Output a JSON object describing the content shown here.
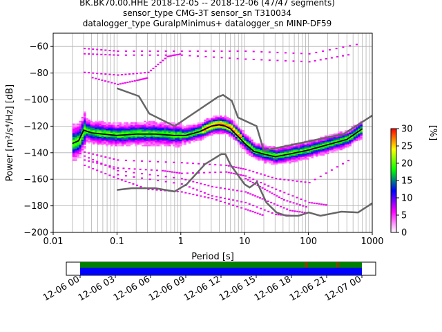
{
  "title": {
    "line1": "BK.BK70.00.HHE   2018-12-05 -- 2018-12-06  (47/47 segments)",
    "line2": "sensor_type CMG-3T sensor_sn T310034",
    "line3": "datalogger_type GuralpMinimus+ datalogger_sn MINP-DF59"
  },
  "chart_data": [
    {
      "type": "heatmap",
      "title": "",
      "xlabel": "Period [s]",
      "ylabel": "Power [m²/s⁴/Hz] [dB]",
      "xscale": "log",
      "xlim": [
        0.01,
        1000
      ],
      "ylim": [
        -200,
        -50
      ],
      "x_ticks": [
        "0.01",
        "0.1",
        "1",
        "10",
        "100",
        "1000"
      ],
      "y_ticks": [
        "−60",
        "−80",
        "−100",
        "−120",
        "−140",
        "−160",
        "−180",
        "−200"
      ],
      "grid": true,
      "colorbar": {
        "label": "[%]",
        "range": [
          0,
          30
        ],
        "ticks": [
          "0",
          "5",
          "10",
          "15",
          "20",
          "25",
          "30"
        ],
        "colormap": [
          "#ffffff",
          "#ff00ff",
          "#0000ff",
          "#00ff00",
          "#ffff00",
          "#ff0000"
        ]
      },
      "series": [
        {
          "role": "mean",
          "color": "#000000",
          "x": [
            0.02,
            0.025,
            0.03,
            0.04,
            0.06,
            0.1,
            0.2,
            0.4,
            0.8,
            1.2,
            2,
            3,
            4,
            5,
            6,
            8,
            10,
            14,
            20,
            30,
            50,
            100,
            200,
            400,
            700
          ],
          "y": [
            -133,
            -131,
            -123,
            -125,
            -126,
            -127,
            -126,
            -126,
            -127,
            -127,
            -124,
            -120,
            -119,
            -120,
            -122,
            -128,
            -133,
            -139,
            -141,
            -143,
            -141,
            -138,
            -134,
            -130,
            -122
          ]
        },
        {
          "role": "high noise model",
          "color": "#666666",
          "x": [
            0.1,
            0.22,
            0.32,
            0.8,
            3.8,
            4.6,
            6.3,
            7.9,
            15.4,
            20,
            354.8,
            1000
          ],
          "y": [
            -91.5,
            -97.4,
            -110.5,
            -120,
            -98,
            -96.5,
            -101,
            -113.5,
            -120,
            -138.5,
            -126,
            -112
          ]
        },
        {
          "role": "low noise model",
          "color": "#666666",
          "x": [
            0.1,
            0.17,
            0.4,
            0.8,
            1.24,
            2.4,
            4.3,
            5,
            6,
            10,
            12,
            15.6,
            21.9,
            31.6,
            45,
            70,
            101,
            154,
            328,
            600,
            1000
          ],
          "y": [
            -168,
            -166.7,
            -166.7,
            -169.2,
            -163.7,
            -148.6,
            -141.1,
            -141.1,
            -149,
            -163.8,
            -166.2,
            -162.1,
            -177.5,
            -185,
            -187.5,
            -187.5,
            -185,
            -187.5,
            -184.4,
            -185,
            -178
          ]
        }
      ]
    },
    {
      "type": "timeline",
      "x_ticks": [
        "12-06 00",
        "12-06 03",
        "12-06 06",
        "12-06 09",
        "12-06 12",
        "12-06 15",
        "12-06 18",
        "12-06 21",
        "12-07 00"
      ],
      "coverage_hours": [
        0,
        24
      ],
      "gap_markers_hours": [
        19.2,
        21.9
      ],
      "colors": {
        "data": "#0000ff",
        "used": "#008000",
        "gap": "#ff0000"
      }
    }
  ]
}
